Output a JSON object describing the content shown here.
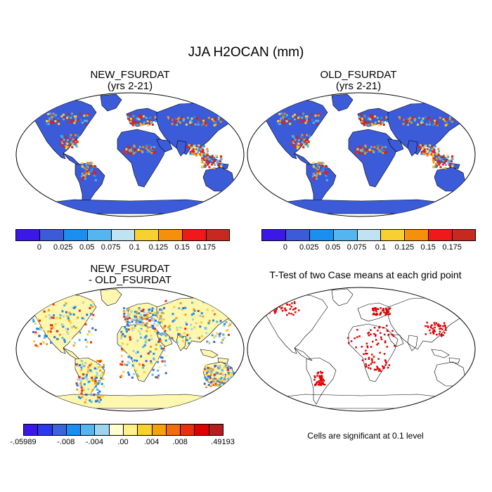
{
  "title": "JJA H2OCAN (mm)",
  "panels": {
    "new": {
      "title_line1": "NEW_FSURDAT",
      "title_line2": "(yrs 2-21)"
    },
    "old": {
      "title_line1": "OLD_FSURDAT",
      "title_line2": "(yrs 2-21)"
    },
    "diff": {
      "title_line1": "NEW_FSURDAT",
      "title_line2": "- OLD_FSURDAT"
    },
    "ttest": {
      "title": "T-Test of two Case means at each grid point",
      "note": "Cells are significant at 0.1 level"
    }
  },
  "colorbar_main": {
    "colors": [
      "#3b18e8",
      "#3b5bd8",
      "#1a8ff0",
      "#55b5ee",
      "#bfe3f2",
      "#f8d030",
      "#f6900a",
      "#f01818",
      "#c8281e"
    ],
    "labels": [
      "0",
      "0.025",
      "0.05",
      "0.075",
      "0.1",
      "0.125",
      "0.15",
      "0.175"
    ]
  },
  "colorbar_diff": {
    "colors": [
      "#3b18e8",
      "#2a3ae8",
      "#3b66d8",
      "#1a8ff0",
      "#55b5ee",
      "#9dd5f0",
      "#ffffd0",
      "#fff08a",
      "#f8d030",
      "#f6a00a",
      "#f06d10",
      "#e83010",
      "#dc0000",
      "#b41e1e"
    ],
    "labels": [
      "-.05989",
      "-.008",
      "-.004",
      ".00",
      ".004",
      ".008",
      ".49193"
    ]
  },
  "map_colors": {
    "land_default": "#3b5bd8",
    "diff_land": "#fdf7b0",
    "significant": "#e00000",
    "coast": "#000000"
  }
}
